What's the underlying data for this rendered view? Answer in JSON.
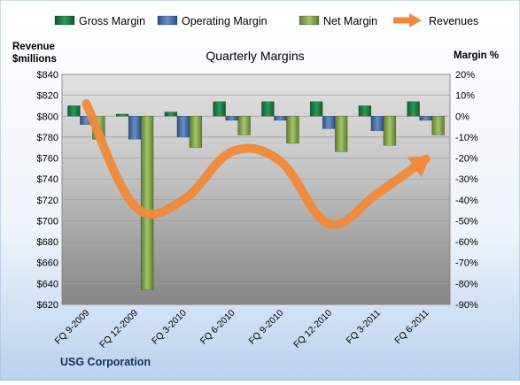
{
  "chart_data": {
    "type": "bar",
    "title": "Quarterly Margins",
    "footer": "USG Corporation",
    "left_axis_title_line1": "Revenue",
    "left_axis_title_line2": "$millions",
    "right_axis_title": "Margin %",
    "categories": [
      "FQ 9-2009",
      "FQ 12-2009",
      "FQ 3-2010",
      "FQ 6-2010",
      "FQ 9-2010",
      "FQ 12-2010",
      "FQ 3-2011",
      "FQ 6-2011"
    ],
    "left_axis": {
      "min": 620,
      "max": 840,
      "step": 20,
      "tick_labels": [
        "$620",
        "$640",
        "$660",
        "$680",
        "$700",
        "$720",
        "$740",
        "$760",
        "$780",
        "$800",
        "$820",
        "$840"
      ]
    },
    "right_axis": {
      "min": -90,
      "max": 20,
      "step": 10,
      "tick_labels": [
        "-90%",
        "-80%",
        "-70%",
        "-60%",
        "-50%",
        "-40%",
        "-30%",
        "-20%",
        "-10%",
        "0%",
        "10%",
        "20%"
      ]
    },
    "series": [
      {
        "name": "Gross Margin",
        "axis": "right",
        "kind": "bar",
        "color": "#1e7b45",
        "values": [
          5,
          1,
          2,
          7,
          7,
          7,
          5,
          7
        ]
      },
      {
        "name": "Operating Margin",
        "axis": "right",
        "kind": "bar",
        "color": "#4a6fa8",
        "values": [
          -4,
          -11,
          -10,
          -2,
          -2,
          -6,
          -7,
          -2
        ]
      },
      {
        "name": "Net Margin",
        "axis": "right",
        "kind": "bar",
        "color": "#7ea14b",
        "values": [
          -11,
          -83,
          -15,
          -9,
          -13,
          -17,
          -14,
          -9
        ]
      },
      {
        "name": "Revenues",
        "axis": "left",
        "kind": "line",
        "color": "#f08a3a",
        "values": [
          812,
          714,
          720,
          766,
          757,
          697,
          726,
          759
        ]
      }
    ],
    "grid": true,
    "legend_position": "top"
  }
}
